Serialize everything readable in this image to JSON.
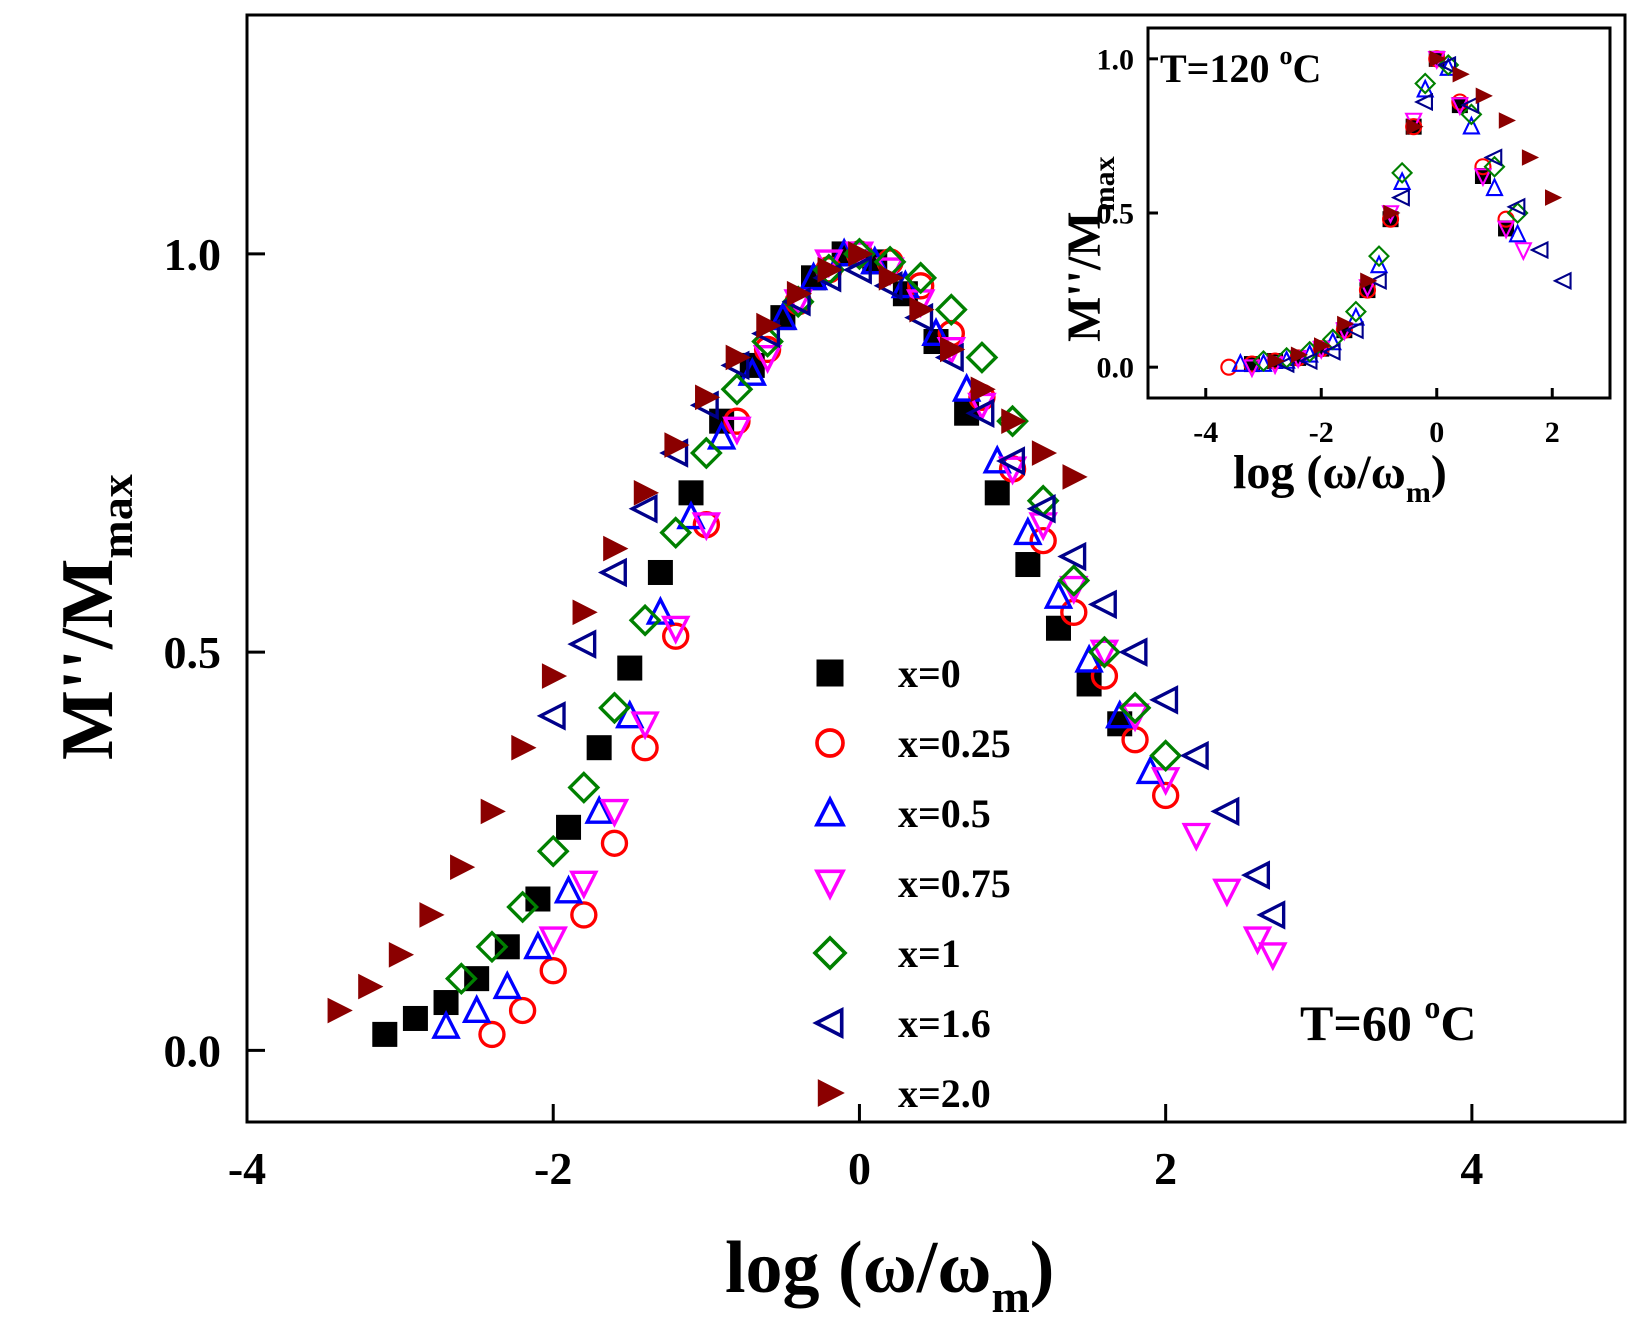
{
  "chart_data": [
    {
      "id": "main",
      "type": "scatter",
      "xlabel": "log (ω/ω",
      "xlabel_sub": "m",
      "xlabel_close": ")",
      "ylabel": "M''/M",
      "ylabel_sub": "max",
      "xlim": [
        -4,
        5
      ],
      "ylim": [
        -0.09,
        1.3
      ],
      "xticks": [
        -4,
        -2,
        0,
        2,
        4
      ],
      "xtick_labels": [
        "-4",
        "-2",
        "0",
        "2",
        "4"
      ],
      "yticks": [
        0.0,
        0.5,
        1.0
      ],
      "ytick_labels": [
        "0.0",
        "0.5",
        "1.0"
      ],
      "grid": false,
      "legend_position": "bottom-center",
      "annotation": "T=60 ",
      "annotation_sup": "o",
      "annotation_unit": "C",
      "series": [
        {
          "name": "x=0",
          "marker": "square-filled",
          "color": "#000000",
          "x": [
            -3.1,
            -2.9,
            -2.7,
            -2.5,
            -2.3,
            -2.1,
            -1.9,
            -1.7,
            -1.5,
            -1.3,
            -1.1,
            -0.9,
            -0.7,
            -0.5,
            -0.3,
            -0.1,
            0.1,
            0.3,
            0.5,
            0.7,
            0.9,
            1.1,
            1.3,
            1.5,
            1.7
          ],
          "y": [
            0.02,
            0.04,
            0.06,
            0.09,
            0.13,
            0.19,
            0.28,
            0.38,
            0.48,
            0.6,
            0.7,
            0.79,
            0.86,
            0.92,
            0.97,
            1.0,
            0.99,
            0.95,
            0.89,
            0.8,
            0.7,
            0.61,
            0.53,
            0.46,
            0.41
          ]
        },
        {
          "name": "x=0.25",
          "marker": "circle-open",
          "color": "#ff0000",
          "x": [
            -2.4,
            -2.2,
            -2.0,
            -1.8,
            -1.6,
            -1.4,
            -1.2,
            -1.0,
            -0.8,
            -0.6,
            -0.4,
            -0.2,
            0.0,
            0.2,
            0.4,
            0.6,
            0.8,
            1.0,
            1.2,
            1.4,
            1.6,
            1.8,
            2.0
          ],
          "y": [
            0.02,
            0.05,
            0.1,
            0.17,
            0.26,
            0.38,
            0.52,
            0.66,
            0.79,
            0.88,
            0.94,
            0.98,
            1.0,
            0.99,
            0.96,
            0.9,
            0.82,
            0.73,
            0.64,
            0.55,
            0.47,
            0.39,
            0.32
          ]
        },
        {
          "name": "x=0.5",
          "marker": "triangle-up-open",
          "color": "#0000ff",
          "x": [
            -2.7,
            -2.5,
            -2.3,
            -2.1,
            -1.9,
            -1.7,
            -1.5,
            -1.3,
            -1.1,
            -0.9,
            -0.7,
            -0.5,
            -0.3,
            -0.1,
            0.1,
            0.3,
            0.5,
            0.7,
            0.9,
            1.1,
            1.3,
            1.5,
            1.7,
            1.9
          ],
          "y": [
            0.03,
            0.05,
            0.08,
            0.13,
            0.2,
            0.3,
            0.42,
            0.55,
            0.67,
            0.77,
            0.85,
            0.92,
            0.97,
            1.0,
            0.99,
            0.96,
            0.9,
            0.83,
            0.74,
            0.65,
            0.57,
            0.49,
            0.42,
            0.35
          ]
        },
        {
          "name": "x=0.75",
          "marker": "triangle-down-open",
          "color": "#ff00ff",
          "x": [
            -2.0,
            -1.8,
            -1.6,
            -1.4,
            -1.2,
            -1.0,
            -0.8,
            -0.6,
            -0.4,
            -0.2,
            0.0,
            0.2,
            0.4,
            0.6,
            0.8,
            1.0,
            1.2,
            1.4,
            1.6,
            1.8,
            2.0,
            2.2,
            2.4,
            2.6,
            2.7
          ],
          "y": [
            0.14,
            0.21,
            0.3,
            0.41,
            0.53,
            0.66,
            0.78,
            0.87,
            0.94,
            0.99,
            1.0,
            0.98,
            0.94,
            0.88,
            0.81,
            0.73,
            0.66,
            0.58,
            0.5,
            0.42,
            0.34,
            0.27,
            0.2,
            0.14,
            0.12
          ]
        },
        {
          "name": "x=1",
          "marker": "diamond-open",
          "color": "#008000",
          "x": [
            -2.6,
            -2.4,
            -2.2,
            -2.0,
            -1.8,
            -1.6,
            -1.4,
            -1.2,
            -1.0,
            -0.8,
            -0.6,
            -0.4,
            -0.2,
            0.0,
            0.2,
            0.4,
            0.6,
            0.8,
            1.0,
            1.2,
            1.4,
            1.6,
            1.8,
            2.0
          ],
          "y": [
            0.09,
            0.13,
            0.18,
            0.25,
            0.33,
            0.43,
            0.54,
            0.65,
            0.75,
            0.83,
            0.89,
            0.94,
            0.98,
            1.0,
            0.99,
            0.97,
            0.93,
            0.87,
            0.79,
            0.69,
            0.59,
            0.5,
            0.43,
            0.37
          ]
        },
        {
          "name": "x=1.6",
          "marker": "triangle-left-open",
          "color": "#00008b",
          "x": [
            -2.0,
            -1.8,
            -1.6,
            -1.4,
            -1.2,
            -1.0,
            -0.8,
            -0.6,
            -0.4,
            -0.2,
            0.0,
            0.2,
            0.4,
            0.6,
            0.8,
            1.0,
            1.2,
            1.4,
            1.6,
            1.8,
            2.0,
            2.2,
            2.4,
            2.6,
            2.7
          ],
          "y": [
            0.42,
            0.51,
            0.6,
            0.68,
            0.75,
            0.81,
            0.86,
            0.9,
            0.94,
            0.97,
            0.98,
            0.96,
            0.92,
            0.87,
            0.8,
            0.74,
            0.68,
            0.62,
            0.56,
            0.5,
            0.44,
            0.37,
            0.3,
            0.22,
            0.17
          ]
        },
        {
          "name": "x=2.0",
          "marker": "triangle-right-filled",
          "color": "#8b0000",
          "x": [
            -3.4,
            -3.2,
            -3.0,
            -2.8,
            -2.6,
            -2.4,
            -2.2,
            -2.0,
            -1.8,
            -1.6,
            -1.4,
            -1.2,
            -1.0,
            -0.8,
            -0.6,
            -0.4,
            -0.2,
            0.0,
            0.2,
            0.4,
            0.6,
            0.8,
            1.0,
            1.2,
            1.4
          ],
          "y": [
            0.05,
            0.08,
            0.12,
            0.17,
            0.23,
            0.3,
            0.38,
            0.47,
            0.55,
            0.63,
            0.7,
            0.76,
            0.82,
            0.87,
            0.91,
            0.95,
            0.98,
            1.0,
            0.97,
            0.93,
            0.88,
            0.83,
            0.79,
            0.75,
            0.72
          ]
        }
      ]
    },
    {
      "id": "inset",
      "type": "scatter",
      "xlabel": "log (ω/ω",
      "xlabel_sub": "m",
      "xlabel_close": ")",
      "ylabel": "M''/M",
      "ylabel_sub": "max",
      "xlim": [
        -5,
        3
      ],
      "ylim": [
        -0.1,
        1.1
      ],
      "xticks": [
        -4,
        -2,
        0,
        2
      ],
      "xtick_labels": [
        "-4",
        "-2",
        "0",
        "2"
      ],
      "yticks": [
        0.0,
        0.5,
        1.0
      ],
      "ytick_labels": [
        "0.0",
        "0.5",
        "1.0"
      ],
      "grid": false,
      "annotation": "T=120 ",
      "annotation_sup": "o",
      "annotation_unit": "C",
      "series": [
        {
          "name": "x=0",
          "marker": "square-filled",
          "color": "#000000",
          "x": [
            -3.2,
            -2.8,
            -2.4,
            -2.0,
            -1.6,
            -1.2,
            -0.8,
            -0.4,
            0.0,
            0.4,
            0.8,
            1.2
          ],
          "y": [
            0.01,
            0.02,
            0.03,
            0.06,
            0.12,
            0.25,
            0.48,
            0.78,
            1.0,
            0.85,
            0.62,
            0.45
          ]
        },
        {
          "name": "x=0.25",
          "marker": "circle-open",
          "color": "#ff0000",
          "x": [
            -3.6,
            -3.2,
            -2.8,
            -2.4,
            -2.0,
            -1.6,
            -1.2,
            -0.8,
            -0.4,
            0.0,
            0.4,
            0.8,
            1.2
          ],
          "y": [
            0.0,
            0.01,
            0.02,
            0.03,
            0.06,
            0.12,
            0.25,
            0.48,
            0.78,
            1.0,
            0.86,
            0.65,
            0.48
          ]
        },
        {
          "name": "x=0.5",
          "marker": "triangle-up-open",
          "color": "#0000ff",
          "x": [
            -3.4,
            -3.0,
            -2.6,
            -2.2,
            -1.8,
            -1.4,
            -1.0,
            -0.6,
            -0.2,
            0.2,
            0.6,
            1.0,
            1.4
          ],
          "y": [
            0.01,
            0.01,
            0.02,
            0.04,
            0.08,
            0.16,
            0.33,
            0.6,
            0.9,
            0.97,
            0.78,
            0.58,
            0.43
          ]
        },
        {
          "name": "x=0.75",
          "marker": "triangle-down-open",
          "color": "#ff00ff",
          "x": [
            -3.2,
            -2.8,
            -2.4,
            -2.0,
            -1.6,
            -1.2,
            -0.8,
            -0.4,
            0.0,
            0.4,
            0.8,
            1.2,
            1.5
          ],
          "y": [
            0.0,
            0.01,
            0.03,
            0.06,
            0.12,
            0.26,
            0.5,
            0.8,
            1.0,
            0.85,
            0.62,
            0.45,
            0.38
          ]
        },
        {
          "name": "x=1",
          "marker": "diamond-open",
          "color": "#008000",
          "x": [
            -3.0,
            -2.6,
            -2.2,
            -1.8,
            -1.4,
            -1.0,
            -0.6,
            -0.2,
            0.2,
            0.6,
            1.0,
            1.4
          ],
          "y": [
            0.02,
            0.03,
            0.05,
            0.09,
            0.18,
            0.36,
            0.63,
            0.92,
            0.98,
            0.82,
            0.65,
            0.5
          ]
        },
        {
          "name": "x=1.6",
          "marker": "triangle-left-open",
          "color": "#00008b",
          "x": [
            -2.6,
            -2.2,
            -1.8,
            -1.4,
            -1.0,
            -0.6,
            -0.2,
            0.2,
            0.6,
            1.0,
            1.4,
            1.8,
            2.2
          ],
          "y": [
            0.01,
            0.02,
            0.05,
            0.12,
            0.28,
            0.55,
            0.86,
            0.98,
            0.85,
            0.68,
            0.52,
            0.38,
            0.28
          ]
        },
        {
          "name": "x=2.0",
          "marker": "triangle-right-filled",
          "color": "#8b0000",
          "x": [
            -2.8,
            -2.4,
            -2.0,
            -1.6,
            -1.2,
            -0.8,
            -0.4,
            0.0,
            0.4,
            0.8,
            1.2,
            1.6,
            2.0
          ],
          "y": [
            0.02,
            0.04,
            0.07,
            0.14,
            0.28,
            0.5,
            0.78,
            1.0,
            0.95,
            0.88,
            0.8,
            0.68,
            0.55
          ]
        }
      ]
    }
  ]
}
